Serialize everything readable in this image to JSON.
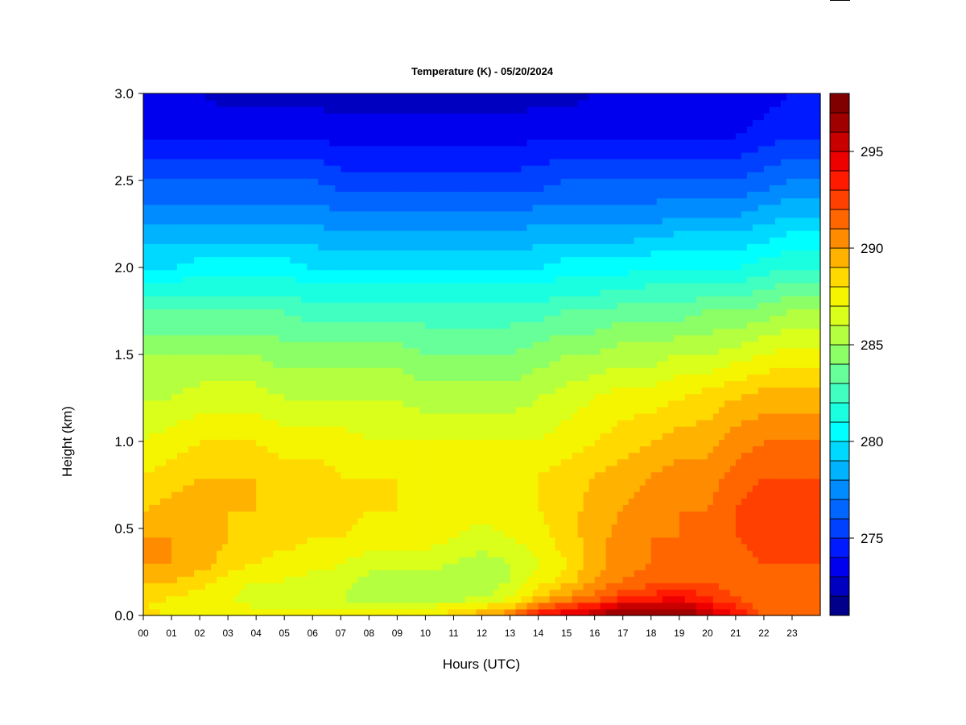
{
  "chart_data": {
    "type": "heatmap",
    "title": "Temperature (K) - 05/20/2024",
    "xlabel": "Hours (UTC)",
    "ylabel": "Height (km)",
    "x_ticks": [
      "00",
      "01",
      "02",
      "03",
      "04",
      "05",
      "06",
      "07",
      "08",
      "09",
      "10",
      "11",
      "12",
      "13",
      "14",
      "15",
      "16",
      "17",
      "18",
      "19",
      "20",
      "21",
      "22",
      "23"
    ],
    "y_ticks": [
      "0.0",
      "0.5",
      "1.0",
      "1.5",
      "2.0",
      "2.5",
      "3.0"
    ],
    "xlim": [
      0,
      24
    ],
    "ylim": [
      0,
      3.0
    ],
    "colorbar": {
      "label_ticks": [
        "275",
        "280",
        "285",
        "290",
        "295"
      ],
      "range": [
        271,
        298
      ],
      "step": 1,
      "colors": [
        "#00008b",
        "#0000c0",
        "#0000ee",
        "#001aff",
        "#0040ff",
        "#0066ff",
        "#008cff",
        "#00b3ff",
        "#00d9ff",
        "#00ffff",
        "#1affe0",
        "#40ffc0",
        "#66ff99",
        "#8cff66",
        "#b3ff40",
        "#d9ff1a",
        "#f5f500",
        "#ffd900",
        "#ffb300",
        "#ff8c00",
        "#ff6600",
        "#ff4000",
        "#ff1a00",
        "#ee0000",
        "#c80000",
        "#a00000",
        "#800000"
      ]
    },
    "profile_heights_km": [
      0,
      0.05,
      0.1,
      0.2,
      0.3,
      0.45,
      0.6,
      0.8,
      1.0,
      1.25,
      1.5,
      1.75,
      2.0,
      2.25,
      2.5,
      2.75,
      3.0
    ],
    "profile_hours": [
      0,
      1,
      2,
      3,
      4,
      5,
      6,
      7,
      8,
      9,
      10,
      11,
      12,
      13,
      14,
      15,
      16,
      17,
      18,
      19,
      20,
      21,
      22,
      23,
      24
    ],
    "values_K": [
      [
        288.5,
        288,
        288.5,
        289,
        290,
        290,
        289,
        288,
        287,
        286,
        285,
        283,
        280,
        278,
        276,
        274,
        273
      ],
      [
        288,
        287.5,
        288,
        289,
        290,
        290,
        289.5,
        288.5,
        287.5,
        286,
        285,
        283,
        280,
        278,
        276,
        274,
        273
      ],
      [
        288,
        287.5,
        287.5,
        288.5,
        289.5,
        290,
        289.5,
        289,
        288,
        286.5,
        285,
        283,
        280.5,
        278,
        276,
        274,
        273
      ],
      [
        287.5,
        287.5,
        287,
        287.5,
        288.5,
        289,
        289,
        289,
        288,
        286.5,
        285,
        283,
        280.5,
        278,
        276,
        274,
        272.5
      ],
      [
        287.5,
        287,
        286.5,
        287,
        288,
        288.5,
        289,
        289,
        288,
        286.5,
        285,
        283,
        280.5,
        278,
        276,
        274,
        272.5
      ],
      [
        287.5,
        287,
        286.5,
        287,
        287.5,
        288.5,
        288.5,
        288.5,
        287.5,
        286,
        284.5,
        283,
        280.5,
        278,
        276,
        274,
        272.5
      ],
      [
        287.5,
        287,
        286.5,
        286.5,
        287.5,
        288,
        288.5,
        288.5,
        287.5,
        286,
        284.5,
        282.5,
        280,
        278,
        276,
        274,
        272.5
      ],
      [
        287.5,
        287,
        286,
        286.5,
        287,
        288,
        288.5,
        288,
        287.5,
        286,
        284.5,
        282.5,
        280,
        277.5,
        275.5,
        273.5,
        272.5
      ],
      [
        287.5,
        287,
        285.5,
        285.5,
        286.5,
        287.5,
        288,
        288,
        287,
        286,
        284.5,
        282.5,
        280,
        277.5,
        275.5,
        273.5,
        272.5
      ],
      [
        287.5,
        287,
        285.5,
        285.5,
        286.5,
        287.5,
        288,
        288,
        287,
        286,
        284.5,
        282.5,
        280,
        277.5,
        275.5,
        273.5,
        272.5
      ],
      [
        288,
        287,
        285.5,
        285.5,
        286.5,
        287.5,
        288,
        287.5,
        287,
        285.5,
        284,
        282.5,
        280,
        277.5,
        275.5,
        273.5,
        272.5
      ],
      [
        288.5,
        287.5,
        285.5,
        285,
        286,
        287,
        287.5,
        287.5,
        287,
        285.5,
        284,
        282.5,
        280,
        277.5,
        275.5,
        273.5,
        272.5
      ],
      [
        290,
        288,
        286,
        285,
        285.5,
        286.5,
        287.5,
        287.5,
        287,
        285.5,
        284,
        282.5,
        280,
        277.5,
        275.5,
        273.5,
        272.5
      ],
      [
        291,
        289,
        287,
        286,
        286,
        287,
        287.5,
        287.5,
        287,
        285.5,
        284,
        282.5,
        280,
        277.5,
        275.5,
        273.5,
        272.5
      ],
      [
        294,
        291.5,
        289,
        287.5,
        287,
        287.5,
        288,
        288,
        287,
        286,
        284.5,
        282.5,
        280,
        278,
        275.5,
        274,
        272.5
      ],
      [
        295,
        293,
        290.5,
        288.5,
        288,
        288.5,
        288.5,
        288.5,
        287.5,
        286.5,
        285,
        283,
        280.5,
        278,
        276,
        274,
        272.5
      ],
      [
        296,
        294,
        291.5,
        290,
        289.5,
        289.5,
        289.5,
        289,
        288,
        287,
        285,
        283,
        280.5,
        278,
        276,
        274,
        273
      ],
      [
        297.5,
        295.5,
        293,
        291,
        290.5,
        290.5,
        290,
        289.5,
        288.5,
        287.5,
        285.5,
        283.5,
        280.5,
        278,
        276,
        274,
        273
      ],
      [
        297.5,
        296,
        293.5,
        291.5,
        291,
        291,
        290.5,
        290,
        289,
        287.5,
        285.5,
        283.5,
        281,
        278,
        276,
        274,
        273
      ],
      [
        297.5,
        296,
        294,
        292,
        291.5,
        291,
        291,
        290.5,
        289.5,
        288,
        286,
        283.5,
        281,
        278.5,
        276,
        274,
        273
      ],
      [
        296,
        294.5,
        293,
        292,
        291.5,
        291.5,
        291,
        290.5,
        289.5,
        288.5,
        286,
        284,
        281,
        278.5,
        276,
        274,
        273
      ],
      [
        294,
        293,
        292,
        291.5,
        291.5,
        292,
        292,
        291.5,
        290.5,
        289,
        286.5,
        284,
        281,
        278.5,
        276,
        274,
        273
      ],
      [
        292,
        291.5,
        291.5,
        292,
        292,
        292.5,
        292.5,
        292,
        291,
        289.5,
        287,
        284.5,
        281.5,
        279,
        276.5,
        274.5,
        273.5
      ],
      [
        291,
        291,
        291,
        291.5,
        292,
        292.5,
        292.5,
        292,
        291,
        289.5,
        287.5,
        285,
        282,
        279.5,
        277,
        275,
        274
      ],
      [
        291,
        291,
        291,
        291.5,
        292,
        292.5,
        292.5,
        292,
        291,
        289.5,
        287.5,
        285,
        282,
        279.5,
        277,
        275,
        274
      ]
    ]
  }
}
